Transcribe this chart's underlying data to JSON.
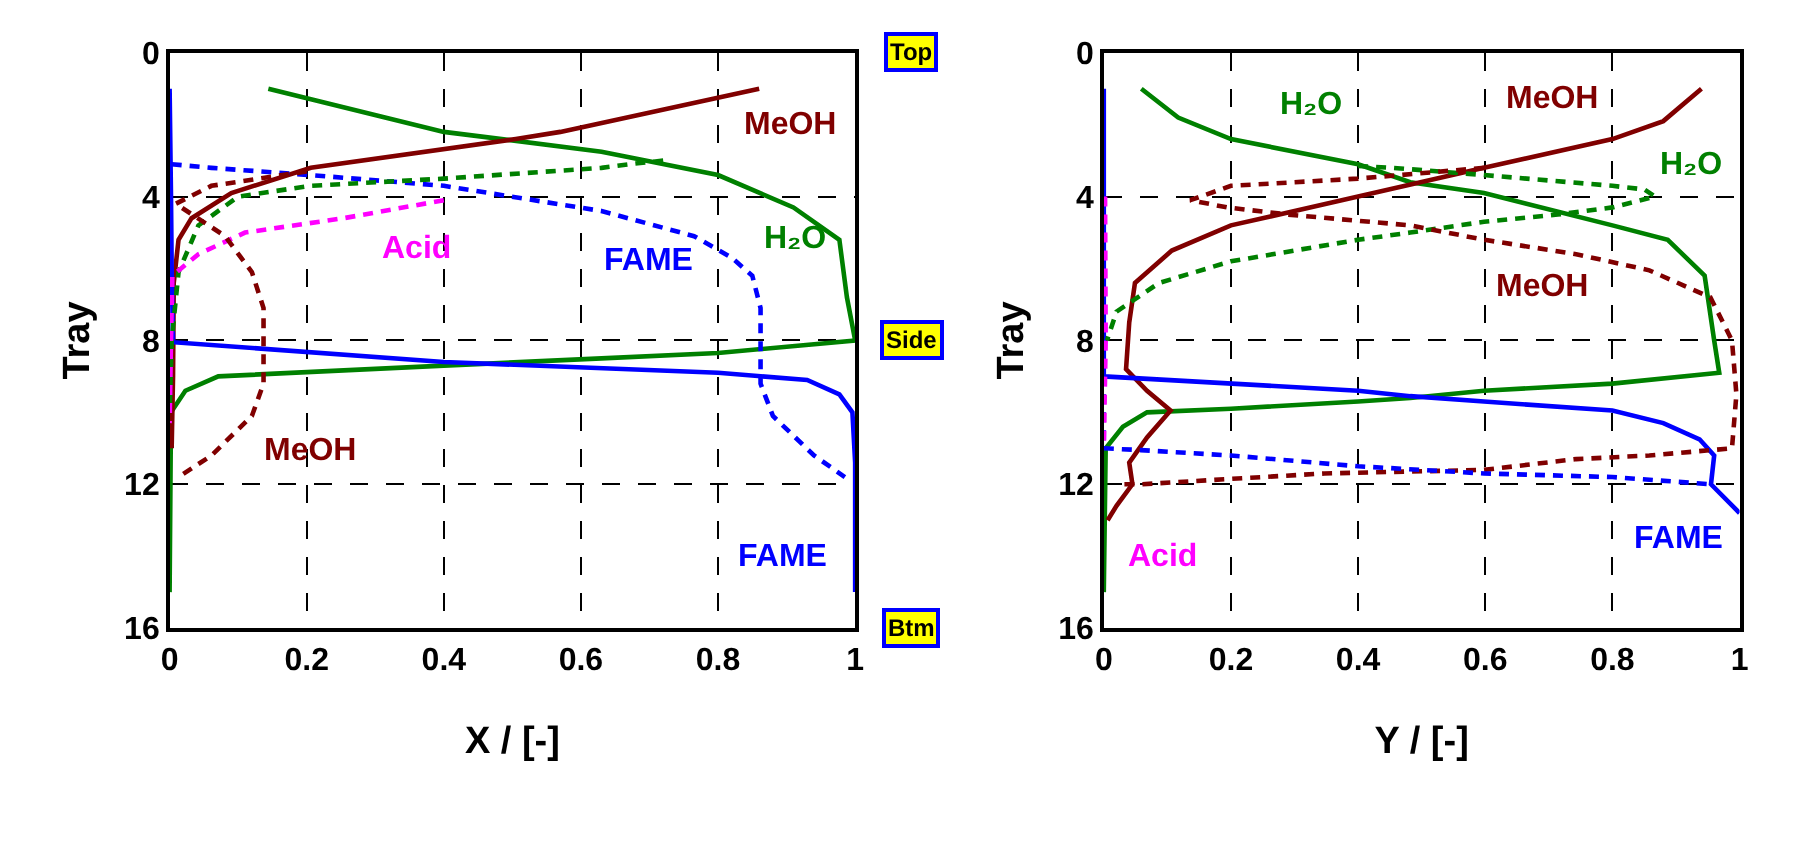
{
  "chart_data": [
    {
      "type": "line",
      "xlabel": "X / [-]",
      "ylabel": "Tray",
      "xlim": [
        0,
        1
      ],
      "xticks": [
        0,
        0.2,
        0.4,
        0.6,
        0.8,
        1
      ],
      "ylim": [
        16,
        0
      ],
      "yticks": [
        0,
        4,
        8,
        12,
        16
      ],
      "grid": true,
      "marker": "none",
      "series": [
        {
          "name": "H₂O",
          "color": "#008000",
          "line_style": "solid",
          "x": [
            0.144,
            0.4,
            0.63,
            0.8,
            0.91,
            0.977,
            0.988,
            1.0,
            0.8,
            0.63,
            0.4,
            0.071,
            0.023,
            0.002,
            0.0
          ],
          "values": [
            1.0,
            2.2,
            2.75,
            3.4,
            4.3,
            5.2,
            6.8,
            8.0,
            8.35,
            8.5,
            8.7,
            9.0,
            9.4,
            10.0,
            15.0
          ]
        },
        {
          "name": "MeOH",
          "color": "#800000",
          "line_style": "solid",
          "x": [
            0.86,
            0.57,
            0.505,
            0.206,
            0.09,
            0.032,
            0.013,
            0.006,
            0.005,
            0.003
          ],
          "values": [
            1.0,
            2.2,
            2.4,
            3.2,
            3.9,
            4.6,
            5.2,
            6.4,
            9.0,
            11.0
          ]
        },
        {
          "name": "FAME",
          "color": "#0000ff",
          "line_style": "solid",
          "x": [
            0.0,
            0.002,
            0.003,
            0.005,
            0.4,
            0.8,
            0.93,
            0.977,
            0.996,
            1.0,
            1.0
          ],
          "values": [
            1.0,
            4.0,
            6.0,
            8.05,
            8.6,
            8.9,
            9.1,
            9.5,
            10.0,
            11.4,
            15.0
          ]
        },
        {
          "name": "FAME",
          "color": "#0000ff",
          "line_style": "dashed",
          "x": [
            0.003,
            0.061,
            0.205,
            0.4,
            0.63,
            0.765,
            0.82,
            0.85,
            0.862,
            0.862,
            0.862,
            0.88,
            0.94,
            0.985
          ],
          "values": [
            3.1,
            3.2,
            3.4,
            3.7,
            4.4,
            5.1,
            5.7,
            6.2,
            7.1,
            8.2,
            9.2,
            10.1,
            11.2,
            11.8
          ]
        },
        {
          "color": "#008000",
          "line_style": "dashed",
          "x": [
            0.72,
            0.67,
            0.63,
            0.4,
            0.205,
            0.1,
            0.042,
            0.013,
            0.003,
            0.0
          ],
          "values": [
            3.0,
            3.1,
            3.2,
            3.5,
            3.7,
            4.0,
            4.8,
            6.1,
            8.0,
            10.0
          ]
        },
        {
          "name": "Acid",
          "color": "#ff00ff",
          "line_style": "dashed",
          "x": [
            0.4,
            0.254,
            0.11,
            0.042,
            0.004,
            0.002,
            0.0
          ],
          "values": [
            4.1,
            4.6,
            5.0,
            5.6,
            6.2,
            8.0,
            10.3
          ]
        },
        {
          "name": "MeOH",
          "color": "#800000",
          "line_style": "dashed",
          "x": [
            0.2,
            0.13,
            0.061,
            0.009,
            0.081,
            0.12,
            0.137,
            0.137,
            0.137,
            0.12,
            0.061,
            0.013
          ],
          "values": [
            3.3,
            3.5,
            3.7,
            4.2,
            5.1,
            6.1,
            7.1,
            8.1,
            9.2,
            10.1,
            11.2,
            11.8
          ]
        }
      ],
      "annotations": [
        "Top",
        "Side",
        "Btm"
      ]
    },
    {
      "type": "line",
      "xlabel": "Y / [-]",
      "ylabel": "Tray",
      "xlim": [
        0,
        1
      ],
      "xticks": [
        0,
        0.2,
        0.4,
        0.6,
        0.8,
        1
      ],
      "ylim": [
        16,
        0
      ],
      "yticks": [
        0,
        4,
        8,
        12,
        16
      ],
      "grid": true,
      "marker": "none",
      "series": [
        {
          "name": "H₂O",
          "color": "#008000",
          "line_style": "solid",
          "x": [
            0.059,
            0.117,
            0.2,
            0.4,
            0.482,
            0.598,
            0.8,
            0.887,
            0.945,
            0.96,
            0.968,
            0.8,
            0.598,
            0.482,
            0.4,
            0.2,
            0.068,
            0.03,
            0.003,
            0.0
          ],
          "values": [
            1.0,
            1.8,
            2.4,
            3.1,
            3.6,
            3.9,
            4.8,
            5.2,
            6.2,
            8.0,
            8.9,
            9.2,
            9.4,
            9.6,
            9.7,
            9.9,
            10.0,
            10.4,
            11.0,
            15.0
          ]
        },
        {
          "name": "MeOH",
          "color": "#800000",
          "line_style": "solid",
          "x": [
            0.94,
            0.88,
            0.8,
            0.598,
            0.4,
            0.2,
            0.107,
            0.049,
            0.04,
            0.035,
            0.068,
            0.105,
            0.068,
            0.04,
            0.045,
            0.02,
            0.006
          ],
          "values": [
            1.0,
            1.9,
            2.4,
            3.2,
            4.0,
            4.8,
            5.5,
            6.4,
            7.5,
            8.8,
            9.4,
            9.95,
            10.7,
            11.4,
            12.0,
            12.6,
            13.0
          ]
        },
        {
          "name": "FAME",
          "color": "#0000ff",
          "line_style": "solid",
          "x": [
            0.0,
            0.0,
            0.4,
            0.482,
            0.598,
            0.8,
            0.88,
            0.937,
            0.96,
            0.955,
            1.0
          ],
          "values": [
            1.0,
            9.0,
            9.4,
            9.55,
            9.7,
            9.95,
            10.3,
            10.75,
            11.2,
            12.0,
            12.8
          ]
        },
        {
          "name": "H₂O",
          "color": "#008000",
          "line_style": "dashed",
          "x": [
            0.4,
            0.455,
            0.598,
            0.8,
            0.85,
            0.867,
            0.8,
            0.714,
            0.598,
            0.482,
            0.4,
            0.2,
            0.087,
            0.02,
            0.005
          ],
          "values": [
            3.15,
            3.2,
            3.4,
            3.7,
            3.8,
            4.0,
            4.3,
            4.5,
            4.7,
            5.0,
            5.2,
            5.8,
            6.4,
            7.2,
            8.0
          ]
        },
        {
          "name": "MeOH",
          "color": "#800000",
          "line_style": "dashed",
          "x": [
            0.598,
            0.4,
            0.2,
            0.136,
            0.194,
            0.29,
            0.482,
            0.598,
            0.743,
            0.858,
            0.954,
            0.988,
            0.995,
            0.988,
            0.858,
            0.743,
            0.598,
            0.347,
            0.2,
            0.06,
            0.03
          ],
          "values": [
            3.2,
            3.5,
            3.7,
            4.1,
            4.3,
            4.5,
            4.8,
            5.2,
            5.6,
            6.05,
            6.8,
            8.0,
            9.5,
            11.0,
            11.2,
            11.3,
            11.6,
            11.7,
            11.85,
            12.0,
            12.0
          ]
        },
        {
          "color": "#0000ff",
          "line_style": "dashed",
          "x": [
            0.0,
            0.0,
            0.058,
            0.2,
            0.4,
            0.598,
            0.8,
            0.955
          ],
          "values": [
            9.5,
            11.0,
            11.05,
            11.2,
            11.5,
            11.7,
            11.8,
            12.0
          ]
        },
        {
          "name": "Acid",
          "color": "#ff00ff",
          "line_style": "dashed",
          "x": [
            0.002,
            0.003,
            0.0
          ],
          "values": [
            4.0,
            8.0,
            11.0
          ]
        }
      ]
    }
  ]
}
